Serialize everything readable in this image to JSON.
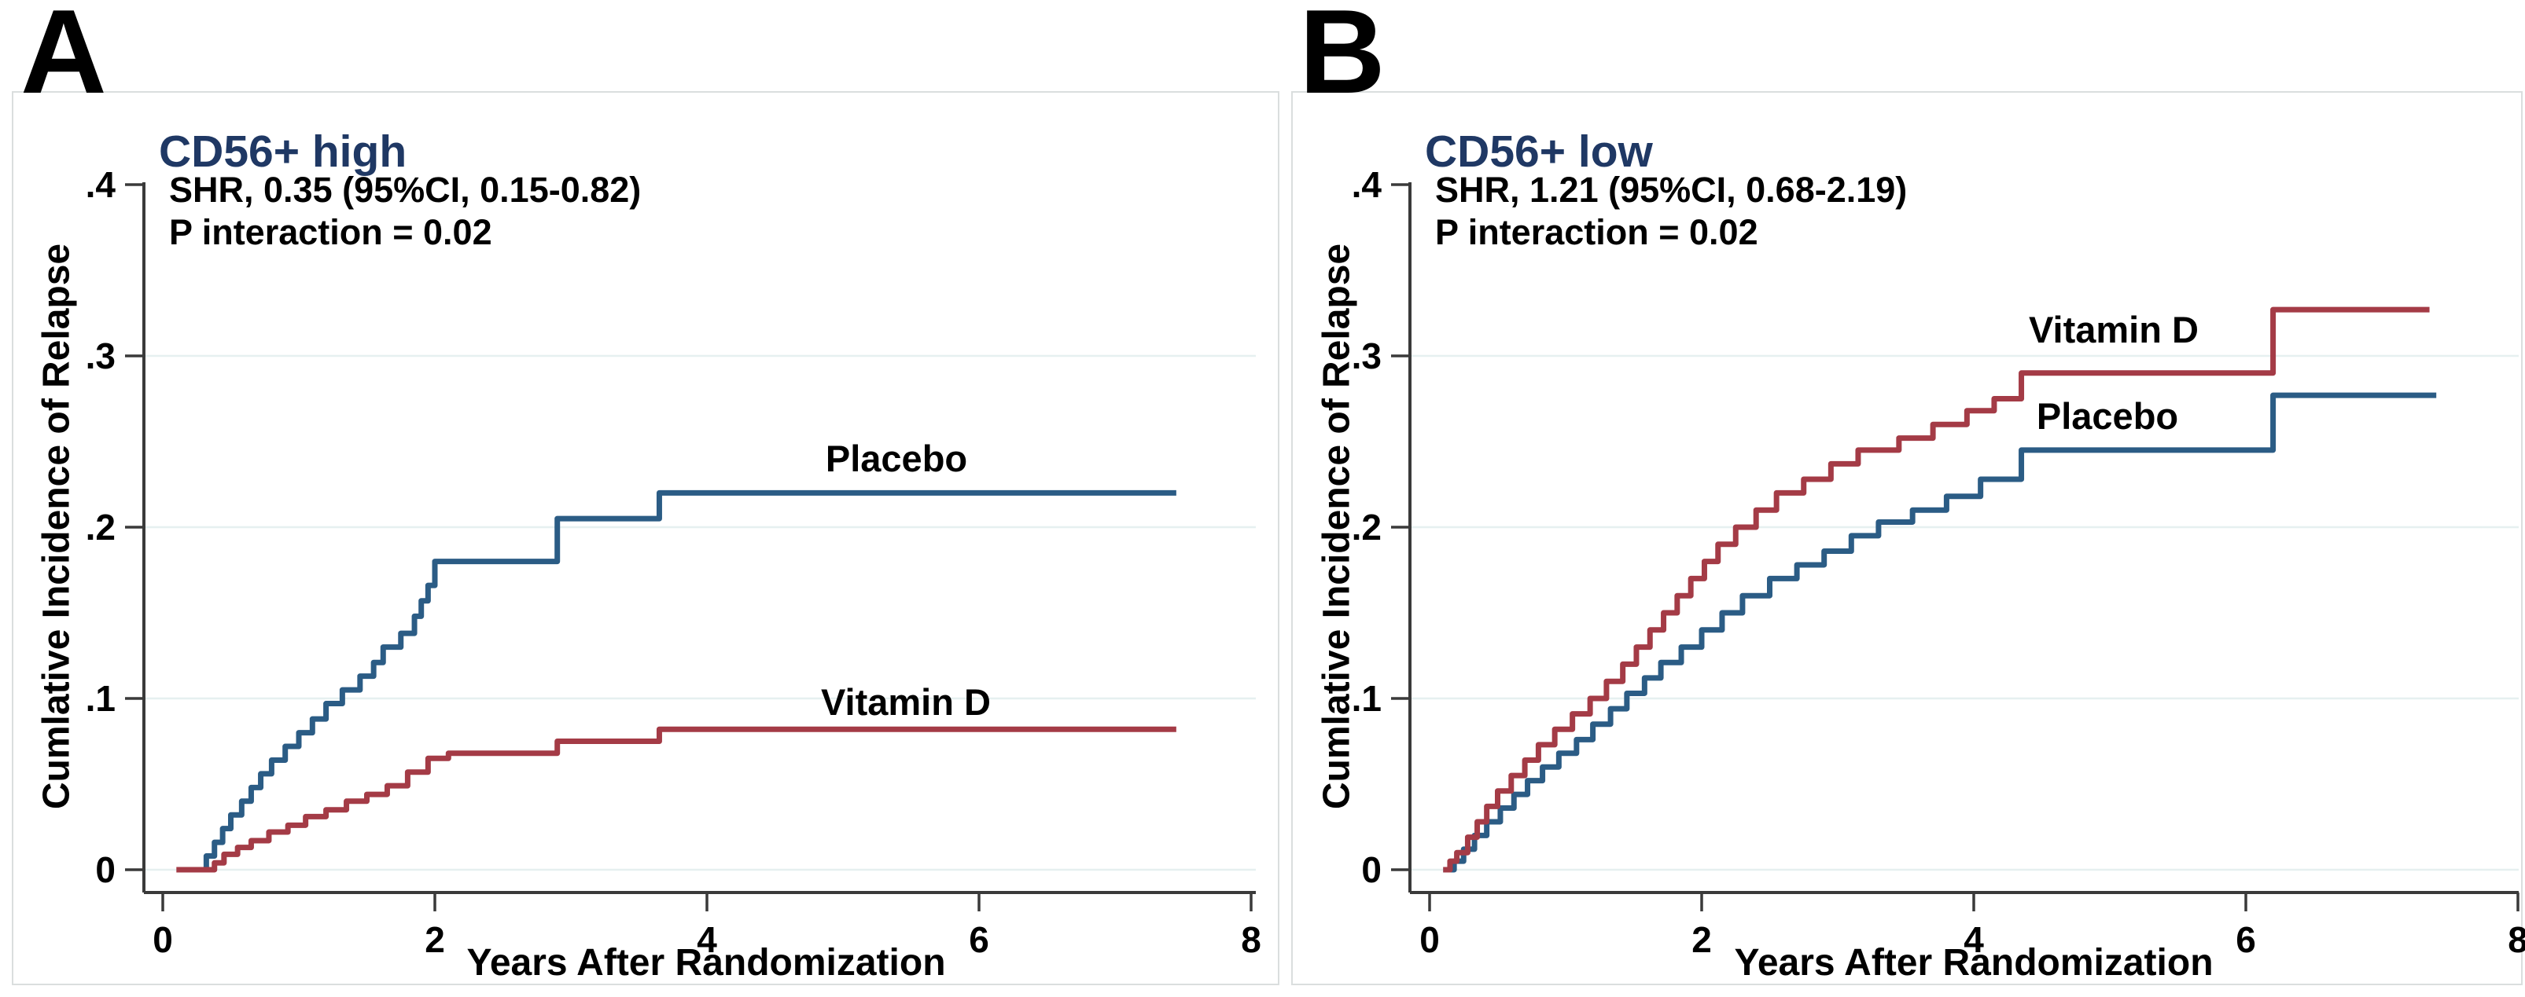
{
  "chart_data": [
    {
      "type": "line",
      "subtype": "cumulative-incidence-step",
      "panel_letter": "A",
      "title": "CD56+ high",
      "annotation_line1": "SHR, 0.35 (95%CI, 0.15-0.82)",
      "annotation_line2": "P interaction = 0.02",
      "xlabel": "Years After Randomization",
      "ylabel": "Cumlative Incidence of Relapse",
      "xlim": [
        0,
        8
      ],
      "ylim": [
        0,
        0.4
      ],
      "x_tick_values": [
        0,
        2,
        4,
        6,
        8
      ],
      "x_tick_labels": [
        "0",
        "2",
        "4",
        "6",
        "8"
      ],
      "y_tick_values": [
        0,
        0.1,
        0.2,
        0.3,
        0.4
      ],
      "y_tick_labels": [
        "0",
        ".1",
        ".2",
        ".3",
        ".4"
      ],
      "grid_values": [
        0,
        0.1,
        0.2,
        0.3
      ],
      "grid": "horizontal-only",
      "legend_position": "inline-labels",
      "series": [
        {
          "name": "Placebo",
          "color": "#2b5c85",
          "start": [
            0.22,
            0
          ],
          "end_t": 7.45,
          "final_value": 0.22,
          "steps": [
            [
              0.32,
              0.008
            ],
            [
              0.38,
              0.016
            ],
            [
              0.44,
              0.024
            ],
            [
              0.5,
              0.032
            ],
            [
              0.58,
              0.04
            ],
            [
              0.65,
              0.048
            ],
            [
              0.72,
              0.056
            ],
            [
              0.8,
              0.064
            ],
            [
              0.9,
              0.072
            ],
            [
              1.0,
              0.08
            ],
            [
              1.1,
              0.088
            ],
            [
              1.2,
              0.097
            ],
            [
              1.32,
              0.105
            ],
            [
              1.45,
              0.113
            ],
            [
              1.55,
              0.121
            ],
            [
              1.62,
              0.13
            ],
            [
              1.75,
              0.138
            ],
            [
              1.85,
              0.148
            ],
            [
              1.9,
              0.157
            ],
            [
              1.95,
              0.166
            ],
            [
              2.0,
              0.18
            ],
            [
              2.9,
              0.205
            ],
            [
              3.65,
              0.22
            ]
          ]
        },
        {
          "name": "Vitamin D",
          "color": "#a43b46",
          "start": [
            0.1,
            0
          ],
          "end_t": 7.45,
          "final_value": 0.082,
          "steps": [
            [
              0.38,
              0.004
            ],
            [
              0.45,
              0.009
            ],
            [
              0.55,
              0.013
            ],
            [
              0.65,
              0.017
            ],
            [
              0.78,
              0.022
            ],
            [
              0.92,
              0.026
            ],
            [
              1.05,
              0.031
            ],
            [
              1.2,
              0.035
            ],
            [
              1.35,
              0.04
            ],
            [
              1.5,
              0.044
            ],
            [
              1.65,
              0.049
            ],
            [
              1.8,
              0.057
            ],
            [
              1.95,
              0.065
            ],
            [
              2.1,
              0.068
            ],
            [
              2.9,
              0.075
            ],
            [
              3.65,
              0.082
            ]
          ]
        }
      ]
    },
    {
      "type": "line",
      "subtype": "cumulative-incidence-step",
      "panel_letter": "B",
      "title": "CD56+ low",
      "annotation_line1": "SHR, 1.21 (95%CI, 0.68-2.19)",
      "annotation_line2": "P interaction = 0.02",
      "xlabel": "Years After Randomization",
      "ylabel": "Cumlative Incidence of Relapse",
      "xlim": [
        0,
        8
      ],
      "ylim": [
        0,
        0.4
      ],
      "x_tick_values": [
        0,
        2,
        4,
        6,
        8
      ],
      "x_tick_labels": [
        "0",
        "2",
        "4",
        "6",
        "8"
      ],
      "y_tick_values": [
        0,
        0.1,
        0.2,
        0.3,
        0.4
      ],
      "y_tick_labels": [
        "0",
        ".1",
        ".2",
        ".3",
        ".4"
      ],
      "grid_values": [
        0,
        0.1,
        0.2,
        0.3
      ],
      "grid": "horizontal-only",
      "legend_position": "inline-labels",
      "series": [
        {
          "name": "Placebo",
          "color": "#2b5c85",
          "start": [
            0.1,
            0
          ],
          "end_t": 7.4,
          "final_value": 0.277,
          "steps": [
            [
              0.18,
              0.005
            ],
            [
              0.25,
              0.012
            ],
            [
              0.33,
              0.02
            ],
            [
              0.42,
              0.028
            ],
            [
              0.52,
              0.036
            ],
            [
              0.62,
              0.044
            ],
            [
              0.72,
              0.052
            ],
            [
              0.83,
              0.06
            ],
            [
              0.95,
              0.068
            ],
            [
              1.08,
              0.076
            ],
            [
              1.2,
              0.085
            ],
            [
              1.33,
              0.094
            ],
            [
              1.45,
              0.103
            ],
            [
              1.58,
              0.112
            ],
            [
              1.7,
              0.121
            ],
            [
              1.85,
              0.13
            ],
            [
              2.0,
              0.14
            ],
            [
              2.15,
              0.15
            ],
            [
              2.3,
              0.16
            ],
            [
              2.5,
              0.17
            ],
            [
              2.7,
              0.178
            ],
            [
              2.9,
              0.186
            ],
            [
              3.1,
              0.195
            ],
            [
              3.3,
              0.203
            ],
            [
              3.55,
              0.21
            ],
            [
              3.8,
              0.218
            ],
            [
              4.05,
              0.228
            ],
            [
              4.35,
              0.245
            ],
            [
              6.2,
              0.277
            ]
          ]
        },
        {
          "name": "Vitamin D",
          "color": "#a43b46",
          "start": [
            0.1,
            0
          ],
          "end_t": 7.35,
          "final_value": 0.327,
          "steps": [
            [
              0.15,
              0.005
            ],
            [
              0.2,
              0.01
            ],
            [
              0.28,
              0.019
            ],
            [
              0.35,
              0.028
            ],
            [
              0.42,
              0.037
            ],
            [
              0.5,
              0.046
            ],
            [
              0.6,
              0.055
            ],
            [
              0.7,
              0.064
            ],
            [
              0.8,
              0.073
            ],
            [
              0.92,
              0.082
            ],
            [
              1.05,
              0.091
            ],
            [
              1.18,
              0.1
            ],
            [
              1.3,
              0.11
            ],
            [
              1.42,
              0.12
            ],
            [
              1.52,
              0.13
            ],
            [
              1.62,
              0.14
            ],
            [
              1.72,
              0.15
            ],
            [
              1.82,
              0.16
            ],
            [
              1.92,
              0.17
            ],
            [
              2.02,
              0.18
            ],
            [
              2.12,
              0.19
            ],
            [
              2.25,
              0.2
            ],
            [
              2.4,
              0.21
            ],
            [
              2.55,
              0.22
            ],
            [
              2.75,
              0.228
            ],
            [
              2.95,
              0.237
            ],
            [
              3.15,
              0.245
            ],
            [
              3.45,
              0.252
            ],
            [
              3.7,
              0.26
            ],
            [
              3.95,
              0.268
            ],
            [
              4.15,
              0.275
            ],
            [
              4.35,
              0.29
            ],
            [
              6.2,
              0.327
            ]
          ]
        }
      ]
    }
  ],
  "style_colors": {
    "placebo_line": "#2b5c85",
    "vitamin_d_line": "#a43b46",
    "title_navy": "#1f3864",
    "gridline": "#e6f0f0",
    "axis_line": "#3a3a3a",
    "panel_border": "#dadede",
    "text": "#000000"
  }
}
